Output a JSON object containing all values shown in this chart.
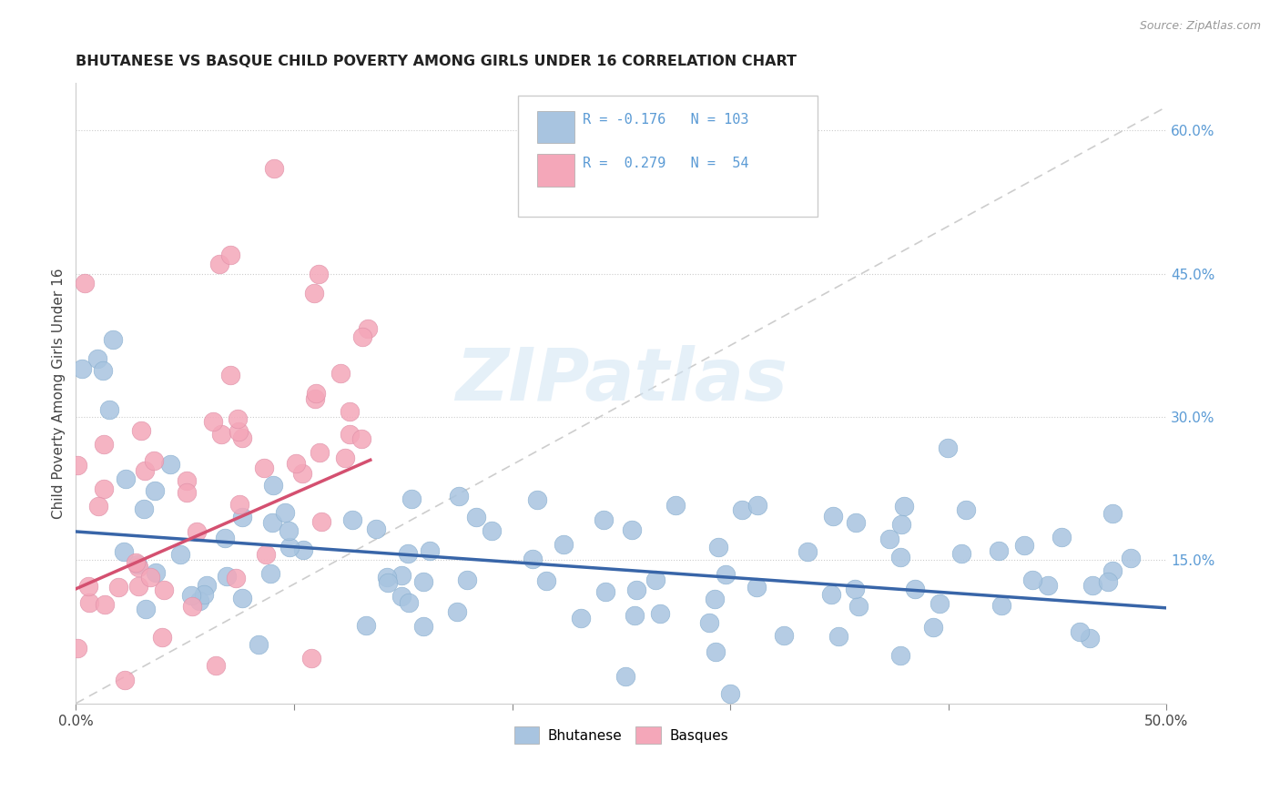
{
  "title": "BHUTANESE VS BASQUE CHILD POVERTY AMONG GIRLS UNDER 16 CORRELATION CHART",
  "source": "Source: ZipAtlas.com",
  "ylabel": "Child Poverty Among Girls Under 16",
  "xlim": [
    0.0,
    0.5
  ],
  "ylim": [
    0.0,
    0.65
  ],
  "xticks": [
    0.0,
    0.1,
    0.2,
    0.3,
    0.4,
    0.5
  ],
  "xtick_labels": [
    "0.0%",
    "",
    "",
    "",
    "",
    "50.0%"
  ],
  "yticks_right": [
    0.15,
    0.3,
    0.45,
    0.6
  ],
  "ytick_labels_right": [
    "15.0%",
    "30.0%",
    "45.0%",
    "60.0%"
  ],
  "legend_line1": "R = -0.176   N = 103",
  "legend_line2": "R =  0.279   N =  54",
  "blue_color": "#a8c4e0",
  "pink_color": "#f4a7b9",
  "blue_line_color": "#3865a8",
  "pink_line_color": "#d45070",
  "grid_color": "#cccccc",
  "watermark": "ZIPatlas",
  "blue_R": -0.176,
  "pink_R": 0.279,
  "bhutanese_seed": 42,
  "basque_seed": 99
}
